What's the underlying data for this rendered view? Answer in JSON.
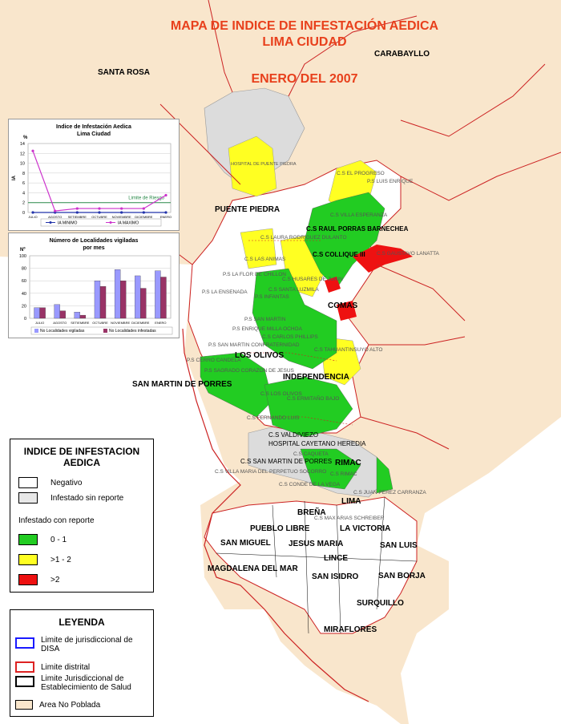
{
  "title": {
    "line1": "MAPA DE INDICE DE INFESTACIÓN AEDICA",
    "line2": "LIMA CIUDAD",
    "line3": "ENERO DEL 2007"
  },
  "districts": [
    "SANTA ROSA",
    "CARABAYLLO",
    "PUENTE PIEDRA",
    "COMAS",
    "LOS OLIVOS",
    "INDEPENDENCIA",
    "SAN MARTIN DE PORRES",
    "RIMAC",
    "LIMA",
    "BREÑA",
    "PUEBLO LIBRE",
    "LA VICTORIA",
    "SAN MIGUEL",
    "JESUS MARIA",
    "SAN LUIS",
    "LINCE",
    "MAGDALENA DEL MAR",
    "SAN ISIDRO",
    "SAN BORJA",
    "SURQUILLO",
    "MIRAFLORES"
  ],
  "centers": [
    "HOSPITAL DE PUENTE PIEDRA",
    "C.S EL PROGRESO",
    "P.S LUIS ENRIQUE",
    "C.S VILLA ESPERANZA",
    "C.S RAUL PORRAS BARNECHEA",
    "C.S LAURA RODRIGUEZ DULANTO",
    "C.S LAS ANIMAS",
    "C.S COLLIQUE III",
    "P.S LA FLOR DE CHILLON",
    "P.S LA ENSENADA",
    "C.S SANTA LUZMILA",
    "C.S GAUSTAVO LANATTA",
    "C.S HUSARES DE JUNIN",
    "P.S INFANTAS",
    "P.S SAN MARTIN",
    "P.S ENRIQUE MILLA OCHOA",
    "C.S CARLOS PHILLIPS",
    "P.S SAN MARTIN CONFRATERNIDAD",
    "P.S CERRO CANDELA",
    "P.S SAGRADO CORAZON DE JESUS",
    "C.S LOS OLIVOS",
    "C.S ERMITAÑO BAJO",
    "C.S FERNANDO LUIS",
    "C.S VALDIVIEZO",
    "HOSPITAL CAYETANO HEREDIA",
    "C.S SAN MARTIN DE PORRES",
    "C.S VILLA MARIA DEL PERPETUO SOCORRO",
    "C.S RIMAC",
    "C.S JUAN PEREZ CARRANZA",
    "C.S CONDE DE LA VEGA",
    "C.S MAX ARIAS SCHREIBER",
    "C.S CAQUETA",
    "C.S TAHUANTINSUYO ALTO"
  ],
  "chart_data": [
    {
      "type": "line",
      "title": "Indice de Infestación Aedica",
      "subtitle": "Lima Ciudad",
      "ylabel": "IA",
      "yunit": "%",
      "categories": [
        "JULIO",
        "AGOSTO",
        "SETIEMBRE",
        "OCTUBRE",
        "NOVIEMBRE",
        "DICIEMBRE",
        "ENERO"
      ],
      "ylim": [
        0,
        14
      ],
      "yticks": [
        0,
        2,
        4,
        6,
        8,
        10,
        12,
        14
      ],
      "series": [
        {
          "name": "IA MINIMO",
          "values": [
            0,
            0,
            0,
            0,
            0,
            0,
            0
          ]
        },
        {
          "name": "IA MAXIMO",
          "values": [
            12.5,
            0.3,
            0.8,
            0.8,
            0.8,
            0.8,
            3.5
          ]
        }
      ],
      "reference_line": {
        "label": "Limite de Riesgo",
        "value": 2
      },
      "colors": {
        "IA MINIMO": "#2233aa",
        "IA MAXIMO": "#cc33cc",
        "reference": "#2a8a4a"
      }
    },
    {
      "type": "bar",
      "title": "Número de Localidades vigiladas",
      "subtitle": "por mes",
      "yunit": "Nº",
      "categories": [
        "JULIO",
        "AGOSTO",
        "SETIEMBRE",
        "OCTUBRE",
        "NOVIEMBRE",
        "DICIEMBRE",
        "ENERO"
      ],
      "ylim": [
        0,
        100
      ],
      "yticks": [
        0,
        20,
        40,
        60,
        80,
        100
      ],
      "series": [
        {
          "name": "No Localidades vigiladas",
          "values": [
            17,
            22,
            10,
            60,
            78,
            68,
            76
          ]
        },
        {
          "name": "No Localidades infestadas",
          "values": [
            17,
            12,
            5,
            51,
            60,
            48,
            66
          ]
        }
      ],
      "colors": {
        "No Localidades vigiladas": "#9999ff",
        "No Localidades infestadas": "#993366"
      }
    }
  ],
  "legend_index": {
    "title": "INDICE DE INFESTACION AEDICA",
    "items": [
      {
        "label": "Negativo",
        "color": "#ffffff"
      },
      {
        "label": "Infestado sin reporte",
        "color": "#e8e8e8"
      }
    ],
    "subtitle": "Infestado con reporte",
    "reported": [
      {
        "label": "0 - 1",
        "color": "#22cc22"
      },
      {
        "label": ">1 - 2",
        "color": "#ffff22"
      },
      {
        "label": ">2",
        "color": "#ee1111"
      }
    ]
  },
  "legend_key": {
    "title": "LEYENDA",
    "items": [
      {
        "label": "Limite de jurisdiccional de DISA",
        "color": "#1a1aff",
        "kind": "outline"
      },
      {
        "label": "Limite distrital",
        "color": "#dd2222",
        "kind": "outline"
      },
      {
        "label": "Limite Jurisdiccional de Establecimiento de Salud",
        "color": "#000000",
        "kind": "outline"
      },
      {
        "label": "Area No Poblada",
        "color": "#f9e6cc",
        "kind": "fill"
      }
    ]
  },
  "colors": {
    "unpopulated": "#f9e6cc",
    "populated_negative": "#ffffff",
    "no_report": "#dcdcdc",
    "low": "#22cc22",
    "medium": "#ffff22",
    "high": "#ee1111",
    "district_border": "#cc2222"
  }
}
